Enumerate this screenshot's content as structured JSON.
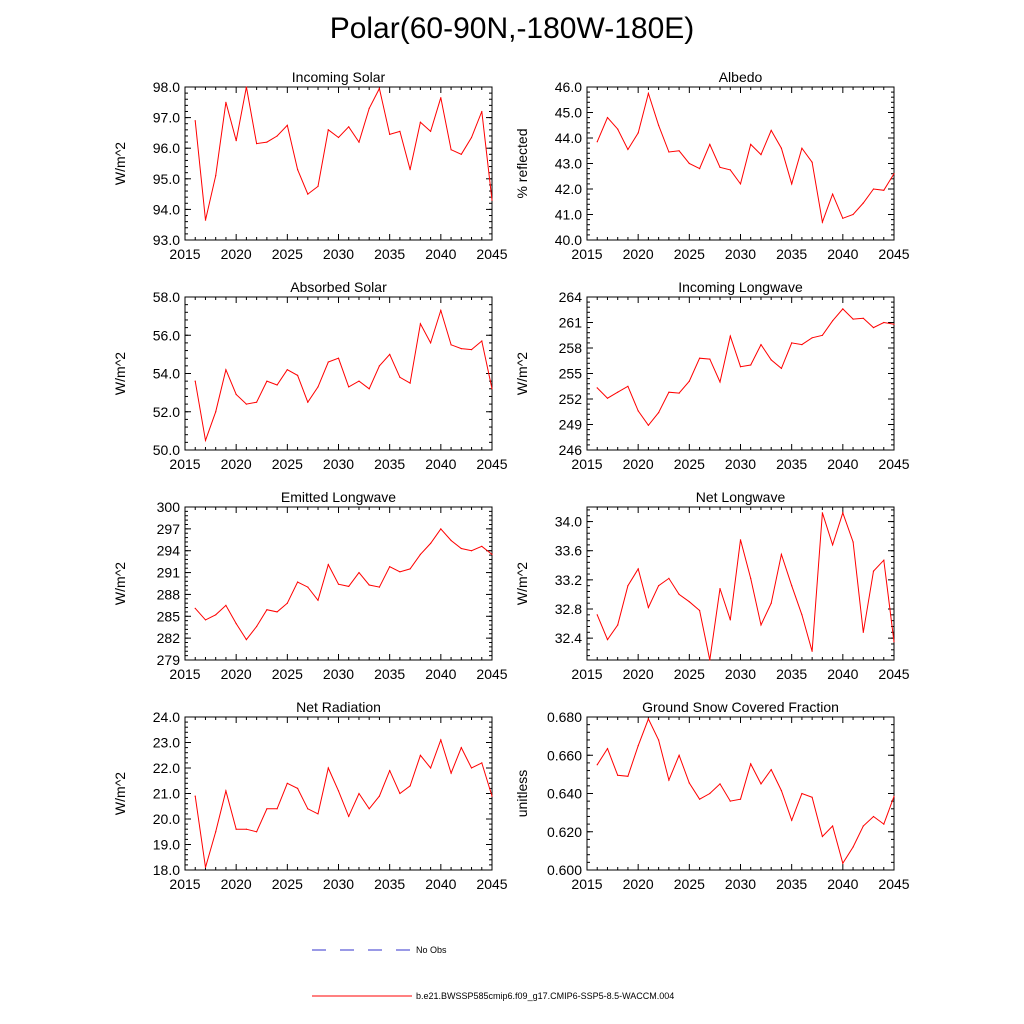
{
  "title": "Polar(60-90N,-180W-180E)",
  "colors": {
    "model": "#ff0000",
    "obs": "#3333cc",
    "axis": "#000000"
  },
  "legend": {
    "obs_label": "No Obs",
    "model_label": "b.e21.BWSSP585cmip6.f09_g17.CMIP6-SSP5-8.5-WACCM.004"
  },
  "chart_data": [
    {
      "type": "line",
      "title": "Incoming Solar",
      "xlabel": "",
      "ylabel": "W/m^2",
      "xlim": [
        2015,
        2045
      ],
      "ylim": [
        93.0,
        98.0
      ],
      "xticks": [
        "2015",
        "2020",
        "2025",
        "2030",
        "2035",
        "2040",
        "2045"
      ],
      "yticks": [
        "93.0",
        "94.0",
        "95.0",
        "96.0",
        "97.0",
        "98.0"
      ],
      "x": [
        2016,
        2017,
        2018,
        2019,
        2020,
        2021,
        2022,
        2023,
        2024,
        2025,
        2026,
        2027,
        2028,
        2029,
        2030,
        2031,
        2032,
        2033,
        2034,
        2035,
        2036,
        2037,
        2038,
        2039,
        2040,
        2041,
        2042,
        2043,
        2044,
        2045
      ],
      "values": [
        96.9,
        93.65,
        95.1,
        97.5,
        96.25,
        98.0,
        96.15,
        96.2,
        96.4,
        96.75,
        95.3,
        94.5,
        94.75,
        96.6,
        96.35,
        96.7,
        96.2,
        97.3,
        97.95,
        96.45,
        96.55,
        95.3,
        96.85,
        96.55,
        97.65,
        95.95,
        95.8,
        96.35,
        97.2,
        94.3
      ]
    },
    {
      "type": "line",
      "title": "Albedo",
      "xlabel": "",
      "ylabel": "% reflected",
      "xlim": [
        2015,
        2045
      ],
      "ylim": [
        40.0,
        46.0
      ],
      "xticks": [
        "2015",
        "2020",
        "2025",
        "2030",
        "2035",
        "2040",
        "2045"
      ],
      "yticks": [
        "40.0",
        "41.0",
        "42.0",
        "43.0",
        "44.0",
        "45.0",
        "46.0"
      ],
      "x": [
        2016,
        2017,
        2018,
        2019,
        2020,
        2021,
        2022,
        2023,
        2024,
        2025,
        2026,
        2027,
        2028,
        2029,
        2030,
        2031,
        2032,
        2033,
        2034,
        2035,
        2036,
        2037,
        2038,
        2039,
        2040,
        2041,
        2042,
        2043,
        2044,
        2045
      ],
      "values": [
        43.85,
        44.8,
        44.35,
        43.55,
        44.2,
        45.75,
        44.5,
        43.45,
        43.5,
        43.0,
        42.8,
        43.75,
        42.85,
        42.75,
        42.2,
        43.75,
        43.35,
        44.3,
        43.6,
        42.2,
        43.6,
        43.05,
        40.7,
        41.8,
        40.85,
        41.0,
        41.45,
        42.0,
        41.95,
        42.6
      ]
    },
    {
      "type": "line",
      "title": "Absorbed Solar",
      "xlabel": "",
      "ylabel": "W/m^2",
      "xlim": [
        2015,
        2045
      ],
      "ylim": [
        50.0,
        58.0
      ],
      "xticks": [
        "2015",
        "2020",
        "2025",
        "2030",
        "2035",
        "2040",
        "2045"
      ],
      "yticks": [
        "50.0",
        "52.0",
        "54.0",
        "56.0",
        "58.0"
      ],
      "x": [
        2016,
        2017,
        2018,
        2019,
        2020,
        2021,
        2022,
        2023,
        2024,
        2025,
        2026,
        2027,
        2028,
        2029,
        2030,
        2031,
        2032,
        2033,
        2034,
        2035,
        2036,
        2037,
        2038,
        2039,
        2040,
        2041,
        2042,
        2043,
        2044,
        2045
      ],
      "values": [
        53.6,
        50.5,
        52.0,
        54.2,
        52.9,
        52.4,
        52.5,
        53.6,
        53.4,
        54.2,
        53.9,
        52.5,
        53.3,
        54.6,
        54.8,
        53.3,
        53.6,
        53.2,
        54.4,
        55.0,
        53.8,
        53.5,
        56.6,
        55.6,
        57.3,
        55.5,
        55.3,
        55.25,
        55.7,
        53.2
      ]
    },
    {
      "type": "line",
      "title": "Incoming Longwave",
      "xlabel": "",
      "ylabel": "W/m^2",
      "xlim": [
        2015,
        2045
      ],
      "ylim": [
        246,
        264
      ],
      "xticks": [
        "2015",
        "2020",
        "2025",
        "2030",
        "2035",
        "2040",
        "2045"
      ],
      "yticks": [
        "246",
        "249",
        "252",
        "255",
        "258",
        "261",
        "264"
      ],
      "x": [
        2016,
        2017,
        2018,
        2019,
        2020,
        2021,
        2022,
        2023,
        2024,
        2025,
        2026,
        2027,
        2028,
        2029,
        2030,
        2031,
        2032,
        2033,
        2034,
        2035,
        2036,
        2037,
        2038,
        2039,
        2040,
        2041,
        2042,
        2043,
        2044,
        2045
      ],
      "values": [
        253.3,
        252.1,
        252.8,
        253.5,
        250.6,
        248.9,
        250.4,
        252.8,
        252.7,
        254.1,
        256.8,
        256.7,
        254.0,
        259.4,
        255.8,
        256.0,
        258.4,
        256.6,
        255.6,
        258.6,
        258.4,
        259.2,
        259.5,
        261.2,
        262.6,
        261.4,
        261.5,
        260.4,
        261.0,
        260.8
      ]
    },
    {
      "type": "line",
      "title": "Emitted Longwave",
      "xlabel": "",
      "ylabel": "W/m^2",
      "xlim": [
        2015,
        2045
      ],
      "ylim": [
        279,
        300
      ],
      "xticks": [
        "2015",
        "2020",
        "2025",
        "2030",
        "2035",
        "2040",
        "2045"
      ],
      "yticks": [
        "279",
        "282",
        "285",
        "288",
        "291",
        "294",
        "297",
        "300"
      ],
      "x": [
        2016,
        2017,
        2018,
        2019,
        2020,
        2021,
        2022,
        2023,
        2024,
        2025,
        2026,
        2027,
        2028,
        2029,
        2030,
        2031,
        2032,
        2033,
        2034,
        2035,
        2036,
        2037,
        2038,
        2039,
        2040,
        2041,
        2042,
        2043,
        2044,
        2045
      ],
      "values": [
        286.1,
        284.5,
        285.2,
        286.5,
        284.0,
        281.8,
        283.6,
        285.9,
        285.6,
        286.8,
        289.7,
        289.0,
        287.2,
        292.1,
        289.4,
        289.1,
        291.0,
        289.3,
        289.0,
        291.8,
        291.1,
        291.5,
        293.5,
        295.0,
        297.0,
        295.4,
        294.3,
        294.0,
        294.6,
        293.5
      ]
    },
    {
      "type": "line",
      "title": "Net Longwave",
      "xlabel": "",
      "ylabel": "W/m^2",
      "xlim": [
        2015,
        2045
      ],
      "ylim": [
        32.1,
        34.2
      ],
      "xticks": [
        "2015",
        "2020",
        "2025",
        "2030",
        "2035",
        "2040",
        "2045"
      ],
      "yticks": [
        "32.4",
        "32.8",
        "33.2",
        "33.6",
        "34.0"
      ],
      "x": [
        2016,
        2017,
        2018,
        2019,
        2020,
        2021,
        2022,
        2023,
        2024,
        2025,
        2026,
        2027,
        2028,
        2029,
        2030,
        2031,
        2032,
        2033,
        2034,
        2035,
        2036,
        2037,
        2038,
        2039,
        2040,
        2041,
        2042,
        2043,
        2044,
        2045
      ],
      "values": [
        32.72,
        32.38,
        32.58,
        33.12,
        33.35,
        32.82,
        33.12,
        33.22,
        33.0,
        32.9,
        32.78,
        32.1,
        33.08,
        32.65,
        33.75,
        33.22,
        32.58,
        32.88,
        33.55,
        33.12,
        32.72,
        32.22,
        34.12,
        33.68,
        34.12,
        33.72,
        32.48,
        33.32,
        33.47,
        32.35
      ]
    },
    {
      "type": "line",
      "title": "Net Radiation",
      "xlabel": "",
      "ylabel": "W/m^2",
      "xlim": [
        2015,
        2045
      ],
      "ylim": [
        18.0,
        24.0
      ],
      "xticks": [
        "2015",
        "2020",
        "2025",
        "2030",
        "2035",
        "2040",
        "2045"
      ],
      "yticks": [
        "18.0",
        "19.0",
        "20.0",
        "21.0",
        "22.0",
        "23.0",
        "24.0"
      ],
      "x": [
        2016,
        2017,
        2018,
        2019,
        2020,
        2021,
        2022,
        2023,
        2024,
        2025,
        2026,
        2027,
        2028,
        2029,
        2030,
        2031,
        2032,
        2033,
        2034,
        2035,
        2036,
        2037,
        2038,
        2039,
        2040,
        2041,
        2042,
        2043,
        2044,
        2045
      ],
      "values": [
        20.9,
        18.1,
        19.5,
        21.1,
        19.6,
        19.6,
        19.5,
        20.4,
        20.4,
        21.4,
        21.2,
        20.4,
        20.2,
        22.0,
        21.1,
        20.1,
        21.0,
        20.4,
        20.9,
        21.9,
        21.0,
        21.3,
        22.5,
        22.0,
        23.1,
        21.8,
        22.8,
        22.0,
        22.2,
        20.9
      ]
    },
    {
      "type": "line",
      "title": "Ground Snow Covered Fraction",
      "xlabel": "",
      "ylabel": "unitless",
      "xlim": [
        2015,
        2045
      ],
      "ylim": [
        0.6,
        0.68
      ],
      "xticks": [
        "2015",
        "2020",
        "2025",
        "2030",
        "2035",
        "2040",
        "2045"
      ],
      "yticks": [
        "0.600",
        "0.620",
        "0.640",
        "0.660",
        "0.680"
      ],
      "x": [
        2016,
        2017,
        2018,
        2019,
        2020,
        2021,
        2022,
        2023,
        2024,
        2025,
        2026,
        2027,
        2028,
        2029,
        2030,
        2031,
        2032,
        2033,
        2034,
        2035,
        2036,
        2037,
        2038,
        2039,
        2040,
        2041,
        2042,
        2043,
        2044,
        2045
      ],
      "values": [
        0.655,
        0.6635,
        0.6495,
        0.649,
        0.665,
        0.679,
        0.668,
        0.647,
        0.66,
        0.6455,
        0.637,
        0.64,
        0.645,
        0.636,
        0.637,
        0.6555,
        0.645,
        0.6525,
        0.6415,
        0.626,
        0.64,
        0.638,
        0.6175,
        0.623,
        0.6035,
        0.612,
        0.623,
        0.628,
        0.624,
        0.6385
      ]
    }
  ]
}
